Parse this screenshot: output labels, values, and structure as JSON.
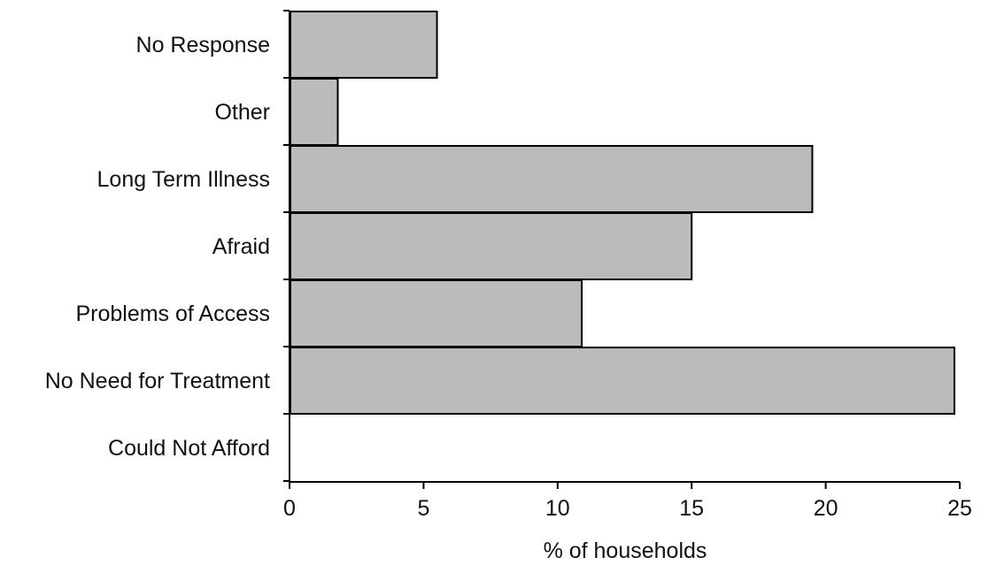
{
  "chart_data": {
    "type": "bar",
    "orientation": "horizontal",
    "categories": [
      "No Response",
      "Other",
      "Long Term Illness",
      "Afraid",
      "Problems of Access",
      "No Need for Treatment",
      "Could Not Afford"
    ],
    "values": [
      5.5,
      1.8,
      19.5,
      15.0,
      10.9,
      24.8,
      0
    ],
    "xlabel": "% of households",
    "ylabel": "",
    "title": "",
    "xlim": [
      0,
      25
    ],
    "xticks": [
      "0",
      "5",
      "10",
      "15",
      "20",
      "25"
    ],
    "grid": false,
    "legend": "none",
    "bar_color": "#bbbbbb",
    "bar_edge_color": "#000000"
  }
}
